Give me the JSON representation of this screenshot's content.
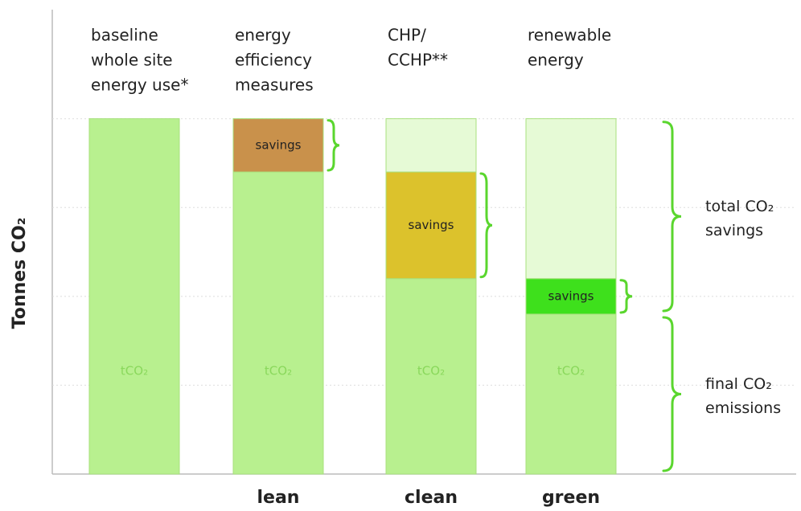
{
  "chart_data": {
    "type": "stacked_bar",
    "y_label": "Tonnes CO₂",
    "categories": [
      [
        "baseline",
        "whole site",
        "energy use*"
      ],
      [
        "energy",
        "efficiency",
        "measures"
      ],
      [
        "CHP/",
        "CCHP**"
      ],
      [
        "renewable",
        "energy"
      ]
    ],
    "stage_labels": [
      null,
      "lean",
      "clean",
      "green"
    ],
    "ylim": [
      0,
      5.2
    ],
    "yticks": [
      1,
      2,
      3,
      4
    ],
    "grid": true,
    "series": [
      {
        "name": "tCO₂",
        "color": "#b8f08f",
        "values": [
          4,
          3.4,
          2.2,
          1.8
        ]
      },
      {
        "name": "savings",
        "colors": [
          null,
          "#c9914b",
          "#dcc22c",
          "#3ee01c"
        ],
        "values": [
          null,
          0.6,
          1.2,
          0.4
        ]
      },
      {
        "color": "#e6fad6",
        "values": [
          null,
          null,
          0.6,
          1.8
        ]
      }
    ],
    "annotations": [
      [
        "total CO₂",
        "savings"
      ],
      [
        "final CO₂",
        "emissions"
      ]
    ]
  }
}
